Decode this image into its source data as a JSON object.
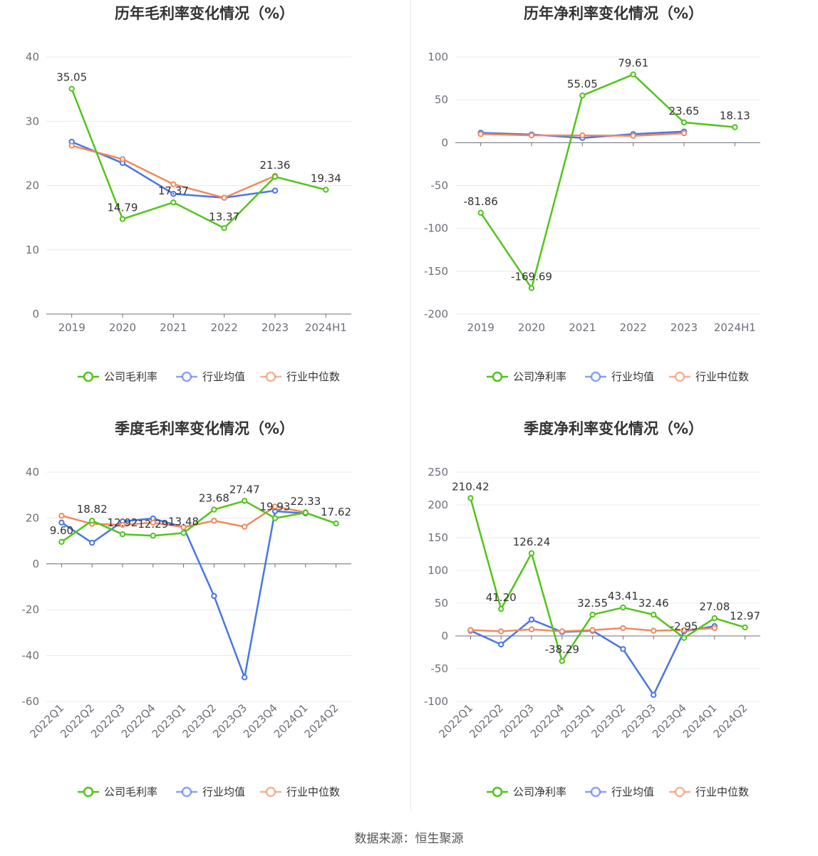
{
  "source_text": "数据来源：恒生聚源",
  "colors": {
    "company": "#52c41a",
    "industry_avg": "#4876e6",
    "industry_median": "#f08a5d"
  },
  "chart_data": [
    {
      "type": "line",
      "title": "历年毛利率变化情况（%）",
      "categories": [
        "2019",
        "2020",
        "2021",
        "2022",
        "2023",
        "2024H1"
      ],
      "ylim": [
        0,
        40
      ],
      "yticks": [
        0,
        10,
        20,
        30,
        40
      ],
      "grid": true,
      "legend": "bottom",
      "rotate_x": false,
      "series": [
        {
          "name": "公司毛利率",
          "color": "#52c41a",
          "values": [
            35.05,
            14.79,
            17.37,
            13.37,
            21.36,
            19.34
          ],
          "labels": [
            "35.05",
            "14.79",
            "17.37",
            "13.37",
            "21.36",
            "19.34"
          ]
        },
        {
          "name": "行业均值",
          "color": "#4876e6",
          "values": [
            26.8,
            23.5,
            18.7,
            18.1,
            19.2,
            null
          ]
        },
        {
          "name": "行业中位数",
          "color": "#f08a5d",
          "values": [
            26.2,
            24.1,
            20.2,
            18.1,
            21.5,
            null
          ]
        }
      ]
    },
    {
      "type": "line",
      "title": "历年净利率变化情况（%）",
      "categories": [
        "2019",
        "2020",
        "2021",
        "2022",
        "2023",
        "2024H1"
      ],
      "ylim": [
        -200,
        100
      ],
      "yticks": [
        -200,
        -150,
        -100,
        -50,
        0,
        50,
        100
      ],
      "grid": true,
      "legend": "bottom",
      "rotate_x": false,
      "series": [
        {
          "name": "公司净利率",
          "color": "#52c41a",
          "values": [
            -81.86,
            -169.69,
            55.05,
            79.61,
            23.65,
            18.13
          ],
          "labels": [
            "-81.86",
            "-169.69",
            "55.05",
            "79.61",
            "23.65",
            "18.13"
          ]
        },
        {
          "name": "行业均值",
          "color": "#4876e6",
          "values": [
            11.5,
            9.5,
            5.5,
            10.0,
            13.0,
            null
          ]
        },
        {
          "name": "行业中位数",
          "color": "#f08a5d",
          "values": [
            10.0,
            8.5,
            8.5,
            8.0,
            11.0,
            null
          ]
        }
      ]
    },
    {
      "type": "line",
      "title": "季度毛利率变化情况（%）",
      "categories": [
        "2022Q1",
        "2022Q2",
        "2022Q3",
        "2022Q4",
        "2023Q1",
        "2023Q2",
        "2023Q3",
        "2023Q4",
        "2024Q1",
        "2024Q2"
      ],
      "ylim": [
        -60,
        40
      ],
      "yticks": [
        -60,
        -40,
        -20,
        0,
        20,
        40
      ],
      "grid": true,
      "legend": "bottom",
      "rotate_x": true,
      "series": [
        {
          "name": "公司毛利率",
          "color": "#52c41a",
          "values": [
            9.6,
            18.82,
            12.92,
            12.29,
            13.48,
            23.68,
            27.47,
            19.93,
            22.33,
            17.62
          ],
          "labels": [
            "9.60",
            "18.82",
            "12.92",
            "12.29",
            "13.48",
            "23.68",
            "27.47",
            "19.93",
            "22.33",
            "17.62"
          ]
        },
        {
          "name": "行业均值",
          "color": "#4876e6",
          "values": [
            18.0,
            9.2,
            18.5,
            19.8,
            16.0,
            -14.0,
            -49.5,
            23.0,
            22.0,
            null
          ]
        },
        {
          "name": "行业中位数",
          "color": "#f08a5d",
          "values": [
            21.0,
            17.5,
            17.0,
            18.0,
            16.0,
            18.8,
            16.2,
            25.0,
            22.5,
            null
          ]
        }
      ]
    },
    {
      "type": "line",
      "title": "季度净利率变化情况（%）",
      "categories": [
        "2022Q1",
        "2022Q2",
        "2022Q3",
        "2022Q4",
        "2023Q1",
        "2023Q2",
        "2023Q3",
        "2023Q4",
        "2024Q1",
        "2024Q2"
      ],
      "ylim": [
        -100,
        250
      ],
      "yticks": [
        -100,
        -50,
        0,
        50,
        100,
        150,
        200,
        250
      ],
      "grid": true,
      "legend": "bottom",
      "rotate_x": true,
      "series": [
        {
          "name": "公司净利率",
          "color": "#52c41a",
          "values": [
            210.42,
            41.2,
            126.24,
            -38.29,
            32.55,
            43.41,
            32.46,
            -2.95,
            27.08,
            12.97
          ],
          "labels": [
            "210.42",
            "41.20",
            "126.24",
            "-38.29",
            "32.55",
            "43.41",
            "32.46",
            "-2.95",
            "27.08",
            "12.97"
          ]
        },
        {
          "name": "行业均值",
          "color": "#4876e6",
          "values": [
            8.0,
            -13.0,
            25.0,
            6.0,
            8.0,
            -20.0,
            -90.0,
            7.0,
            15.0,
            null
          ]
        },
        {
          "name": "行业中位数",
          "color": "#f08a5d",
          "values": [
            9.0,
            7.0,
            10.0,
            7.0,
            9.0,
            12.0,
            8.0,
            9.0,
            12.0,
            null
          ]
        }
      ]
    }
  ]
}
